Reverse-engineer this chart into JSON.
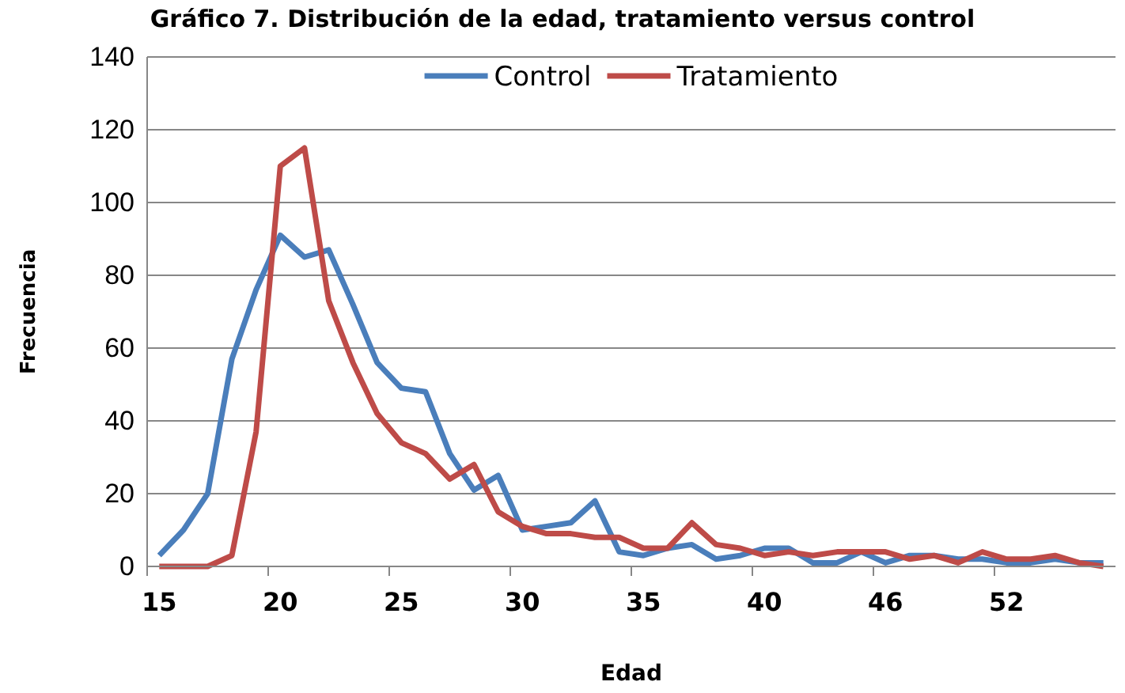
{
  "chart_data": {
    "type": "line",
    "title": "Gráfico 7. Distribución de la edad, tratamiento versus control",
    "xlabel": "Edad",
    "ylabel": "Frecuencia",
    "categories": [
      "15",
      null,
      null,
      null,
      null,
      "20",
      null,
      null,
      null,
      null,
      "25",
      null,
      null,
      null,
      null,
      "30",
      null,
      null,
      null,
      null,
      "35",
      null,
      null,
      null,
      null,
      "40",
      null,
      null,
      null,
      null,
      "46",
      null,
      null,
      null,
      null,
      "52",
      null,
      null,
      null,
      null
    ],
    "series": [
      {
        "name": "Control",
        "color": "#4a7ebb",
        "values": [
          3,
          10,
          20,
          57,
          76,
          91,
          85,
          87,
          72,
          56,
          49,
          48,
          31,
          21,
          25,
          10,
          11,
          12,
          18,
          4,
          3,
          5,
          6,
          2,
          3,
          5,
          5,
          1,
          1,
          4,
          1,
          3,
          3,
          2,
          2,
          1,
          1,
          2,
          1,
          1
        ]
      },
      {
        "name": "Tratamiento",
        "color": "#be4b48",
        "values": [
          0,
          0,
          0,
          3,
          37,
          110,
          115,
          73,
          56,
          42,
          34,
          31,
          24,
          28,
          15,
          11,
          9,
          9,
          8,
          8,
          5,
          5,
          12,
          6,
          5,
          3,
          4,
          3,
          4,
          4,
          4,
          2,
          3,
          1,
          4,
          2,
          2,
          3,
          1,
          0
        ]
      }
    ],
    "ylim": [
      0,
      140
    ],
    "yticks": [
      0,
      20,
      40,
      60,
      80,
      100,
      120,
      140
    ],
    "grid": "y",
    "legend": "top",
    "line_style": "solid",
    "marker": "none"
  }
}
